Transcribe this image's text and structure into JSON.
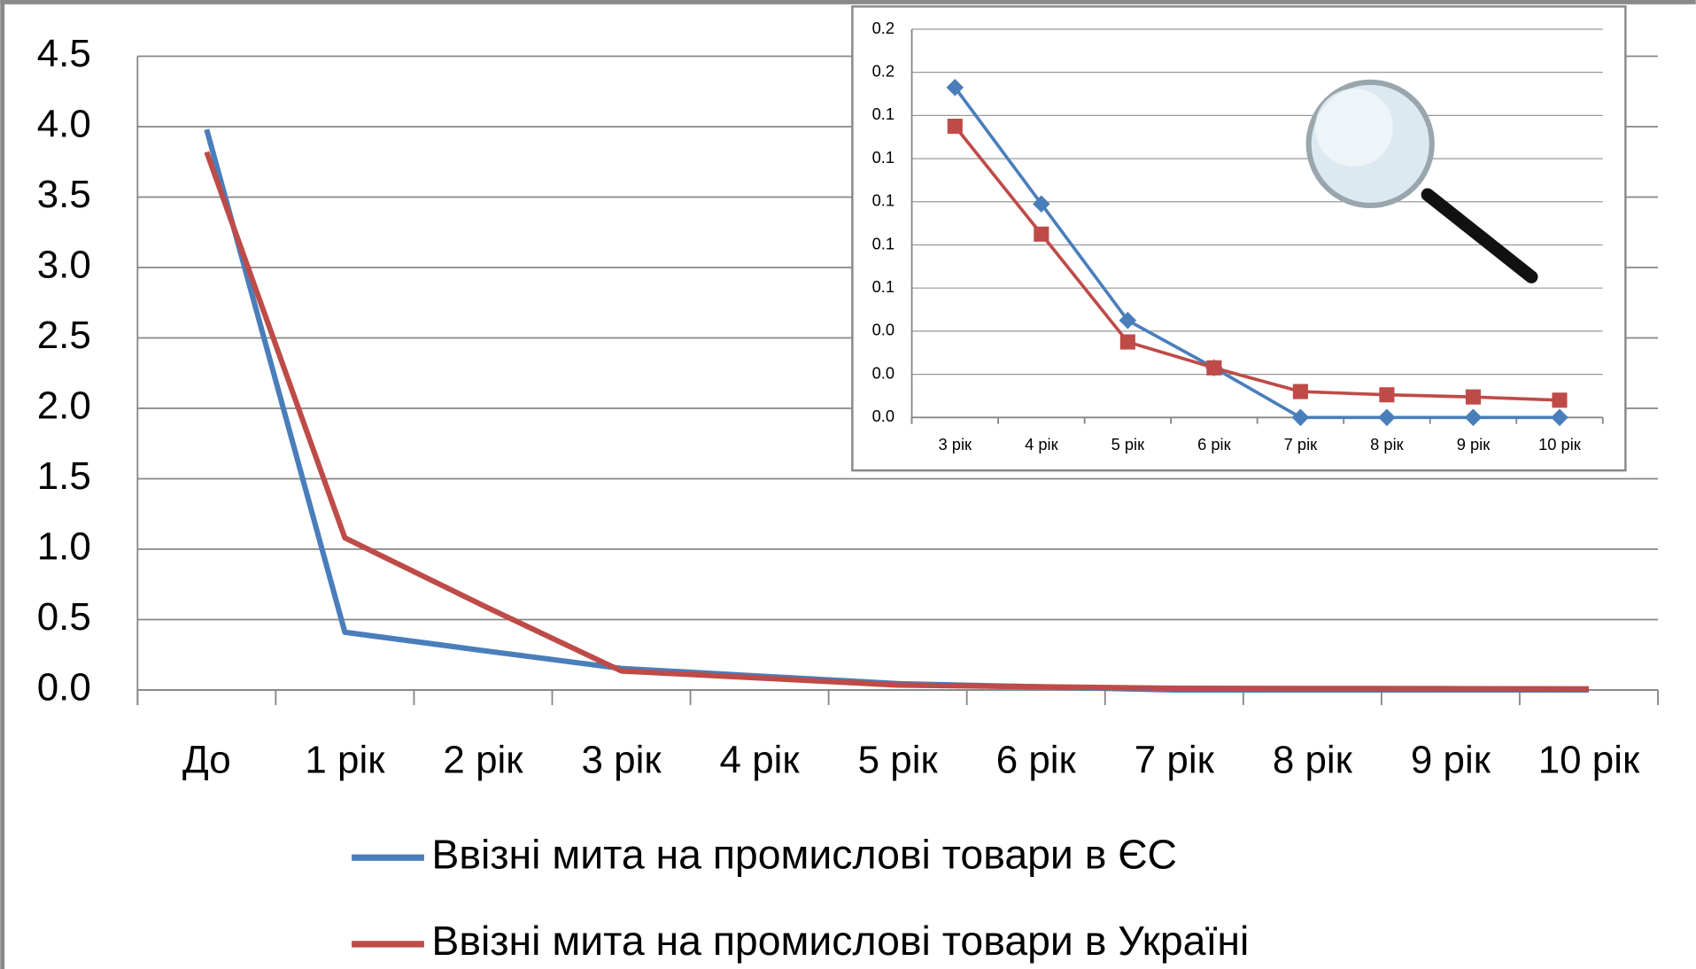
{
  "chart_data": [
    {
      "type": "line",
      "categories": [
        "До",
        "1 рік",
        "2 рік",
        "3 рік",
        "4 рік",
        "5 рік",
        "6 рік",
        "7 рік",
        "8 рік",
        "9 рік",
        "10 рік"
      ],
      "series": [
        {
          "name": "Ввізні мита на промислові товари в ЄС",
          "color": "#4a7ebb",
          "values": [
            3.98,
            0.41,
            0.28,
            0.153,
            0.099,
            0.045,
            0.023,
            0,
            0,
            0,
            0
          ]
        },
        {
          "name": "Ввізні мита на промислові товари в Україні",
          "color": "#be4b48",
          "values": [
            3.82,
            1.08,
            0.6,
            0.135,
            0.085,
            0.035,
            0.023,
            0.012,
            0.0105,
            0.0095,
            0.008
          ]
        }
      ],
      "ylim": [
        0,
        4.5
      ],
      "yticks": [
        {
          "value": 0,
          "label": "0.0"
        },
        0.5,
        {
          "value": 1,
          "label": "1.0"
        },
        1.5,
        {
          "value": 2,
          "label": "2.0"
        },
        2.5,
        {
          "value": 3,
          "label": "3.0"
        },
        3.5,
        {
          "value": 4,
          "label": "4.0"
        },
        4.5
      ],
      "grid": true,
      "legend": "bottom"
    },
    {
      "type": "line",
      "categories": [
        "3 рік",
        "4 рік",
        "5 рік",
        "6 рік",
        "7 рік",
        "8 рік",
        "9 рік",
        "10 рік"
      ],
      "series": [
        {
          "color": "#4a7ebb",
          "marker": "diamond",
          "values": [
            0.153,
            0.099,
            0.045,
            0.023,
            0,
            0,
            0,
            0
          ]
        },
        {
          "color": "#be4b48",
          "marker": "square",
          "values": [
            0.135,
            0.085,
            0.035,
            0.023,
            0.012,
            0.0105,
            0.0095,
            0.008
          ]
        }
      ],
      "ylim": [
        0,
        0.18
      ],
      "yticks": [
        {
          "value": 0,
          "label": "0.0"
        },
        {
          "value": 0.02,
          "label": "0.0"
        },
        {
          "value": 0.04,
          "label": "0.0"
        },
        {
          "value": 0.06,
          "label": "0.1"
        },
        {
          "value": 0.08,
          "label": "0.1"
        },
        {
          "value": 0.1,
          "label": "0.1"
        },
        {
          "value": 0.12,
          "label": "0.1"
        },
        {
          "value": 0.14,
          "label": "0.1"
        },
        {
          "value": 0.16,
          "label": "0.2"
        },
        {
          "value": 0.18,
          "label": "0.2"
        }
      ],
      "grid": true
    }
  ]
}
